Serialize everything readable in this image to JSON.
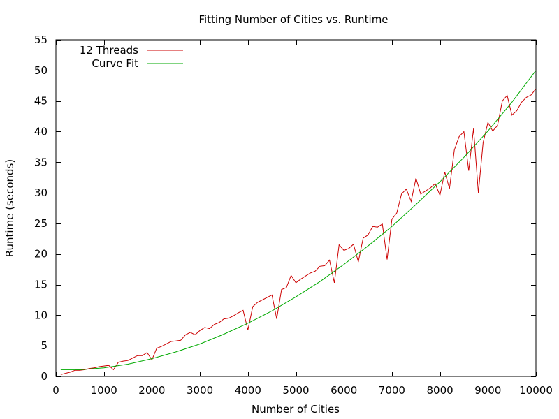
{
  "chart_data": {
    "type": "line",
    "title": "Fitting Number of Cities vs. Runtime",
    "xlabel": "Number of Cities",
    "ylabel": "Runtime (seconds)",
    "xlim": [
      0,
      10000
    ],
    "ylim": [
      0,
      55
    ],
    "xticks": [
      0,
      1000,
      2000,
      3000,
      4000,
      5000,
      6000,
      7000,
      8000,
      9000,
      10000
    ],
    "yticks": [
      0,
      5,
      10,
      15,
      20,
      25,
      30,
      35,
      40,
      45,
      50,
      55
    ],
    "grid": false,
    "legend_position": "top-left",
    "series": [
      {
        "name": "12 Threads",
        "color": "#cc0000",
        "points": [
          [
            100,
            0.3
          ],
          [
            200,
            0.5
          ],
          [
            300,
            0.7
          ],
          [
            400,
            1.0
          ],
          [
            500,
            1.0
          ],
          [
            600,
            1.1
          ],
          [
            700,
            1.3
          ],
          [
            800,
            1.4
          ],
          [
            900,
            1.6
          ],
          [
            1000,
            1.7
          ],
          [
            1100,
            1.8
          ],
          [
            1200,
            1.1
          ],
          [
            1300,
            2.3
          ],
          [
            1400,
            2.5
          ],
          [
            1500,
            2.6
          ],
          [
            1600,
            3.0
          ],
          [
            1700,
            3.4
          ],
          [
            1800,
            3.4
          ],
          [
            1900,
            3.9
          ],
          [
            2000,
            2.7
          ],
          [
            2100,
            4.6
          ],
          [
            2200,
            4.9
          ],
          [
            2300,
            5.3
          ],
          [
            2400,
            5.7
          ],
          [
            2500,
            5.8
          ],
          [
            2600,
            5.9
          ],
          [
            2700,
            6.8
          ],
          [
            2800,
            7.2
          ],
          [
            2900,
            6.8
          ],
          [
            3000,
            7.5
          ],
          [
            3100,
            8.0
          ],
          [
            3200,
            7.8
          ],
          [
            3300,
            8.5
          ],
          [
            3400,
            8.8
          ],
          [
            3500,
            9.4
          ],
          [
            3600,
            9.5
          ],
          [
            3700,
            9.9
          ],
          [
            3800,
            10.4
          ],
          [
            3900,
            10.8
          ],
          [
            4000,
            7.6
          ],
          [
            4100,
            11.4
          ],
          [
            4200,
            12.1
          ],
          [
            4300,
            12.5
          ],
          [
            4400,
            12.9
          ],
          [
            4500,
            13.3
          ],
          [
            4600,
            9.4
          ],
          [
            4700,
            14.2
          ],
          [
            4800,
            14.5
          ],
          [
            4900,
            16.5
          ],
          [
            5000,
            15.3
          ],
          [
            5100,
            15.9
          ],
          [
            5200,
            16.4
          ],
          [
            5300,
            16.9
          ],
          [
            5400,
            17.2
          ],
          [
            5500,
            18.0
          ],
          [
            5600,
            18.1
          ],
          [
            5700,
            19.0
          ],
          [
            5800,
            15.3
          ],
          [
            5900,
            21.5
          ],
          [
            6000,
            20.6
          ],
          [
            6100,
            20.9
          ],
          [
            6200,
            21.6
          ],
          [
            6300,
            18.7
          ],
          [
            6400,
            22.6
          ],
          [
            6500,
            23.1
          ],
          [
            6600,
            24.5
          ],
          [
            6700,
            24.4
          ],
          [
            6800,
            24.9
          ],
          [
            6900,
            19.1
          ],
          [
            7000,
            25.7
          ],
          [
            7100,
            26.7
          ],
          [
            7200,
            29.8
          ],
          [
            7300,
            30.6
          ],
          [
            7400,
            28.6
          ],
          [
            7500,
            32.4
          ],
          [
            7600,
            29.8
          ],
          [
            7700,
            30.3
          ],
          [
            7800,
            30.8
          ],
          [
            7900,
            31.5
          ],
          [
            8000,
            29.6
          ],
          [
            8100,
            33.4
          ],
          [
            8200,
            30.7
          ],
          [
            8300,
            37.0
          ],
          [
            8400,
            39.2
          ],
          [
            8500,
            40.0
          ],
          [
            8600,
            33.6
          ],
          [
            8700,
            40.5
          ],
          [
            8800,
            30.0
          ],
          [
            8900,
            38.2
          ],
          [
            9000,
            41.5
          ],
          [
            9100,
            40.1
          ],
          [
            9200,
            41.0
          ],
          [
            9300,
            45.0
          ],
          [
            9400,
            45.9
          ],
          [
            9500,
            42.7
          ],
          [
            9600,
            43.4
          ],
          [
            9700,
            44.8
          ],
          [
            9800,
            45.6
          ],
          [
            9900,
            46.0
          ],
          [
            10000,
            47.0
          ]
        ]
      },
      {
        "name": "Curve Fit",
        "color": "#00aa00",
        "points": [
          [
            100,
            1.1
          ],
          [
            500,
            1.1
          ],
          [
            1000,
            1.4
          ],
          [
            1500,
            2.0
          ],
          [
            2000,
            2.9
          ],
          [
            2500,
            4.0
          ],
          [
            3000,
            5.3
          ],
          [
            3500,
            6.9
          ],
          [
            4000,
            8.7
          ],
          [
            4500,
            10.7
          ],
          [
            5000,
            13.0
          ],
          [
            5500,
            15.5
          ],
          [
            6000,
            18.3
          ],
          [
            6500,
            21.3
          ],
          [
            7000,
            24.5
          ],
          [
            7500,
            28.1
          ],
          [
            8000,
            31.8
          ],
          [
            8500,
            35.8
          ],
          [
            9000,
            40.1
          ],
          [
            9500,
            44.8
          ],
          [
            10000,
            50.0
          ]
        ]
      }
    ]
  }
}
